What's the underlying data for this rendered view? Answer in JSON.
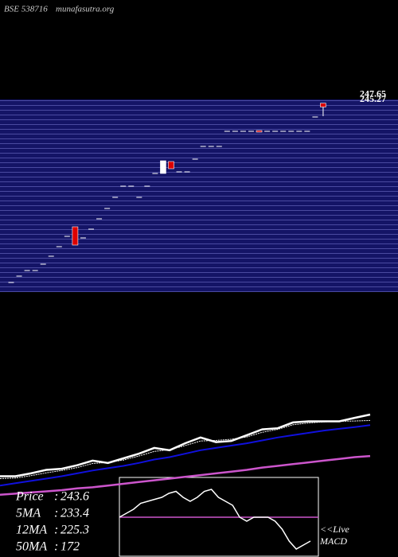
{
  "chart_data": [
    {
      "type": "candlestick",
      "exchange": "BSE 538716",
      "site": "munafasutra.org",
      "ylim": [
        130,
        250
      ],
      "price_labels": [
        247.65,
        245.27
      ],
      "open": [
        135,
        139,
        142.5,
        142.5,
        146.5,
        151.5,
        157.5,
        164,
        170,
        163,
        168.5,
        175,
        181.5,
        188.5,
        195.5,
        195.5,
        188.5,
        195.5,
        203.5,
        203.5,
        211,
        204.5,
        204.5,
        212.5,
        220.5,
        220.5,
        220.5,
        230,
        230,
        230,
        230,
        230.5,
        230,
        230,
        230,
        230,
        230,
        230,
        239,
        247.65
      ],
      "high": [
        135,
        139,
        142.5,
        142.5,
        146.5,
        151.5,
        157.5,
        164,
        170,
        163,
        168.5,
        175,
        181.5,
        188.5,
        195.5,
        195.5,
        188.5,
        195.5,
        203.5,
        211.5,
        211,
        204.5,
        204.5,
        212.5,
        220.5,
        220.5,
        220.5,
        230,
        230,
        230,
        230,
        230.5,
        230,
        230,
        230,
        230,
        230,
        230,
        239,
        247.65
      ],
      "low": [
        135,
        139,
        142.5,
        142.5,
        146.5,
        151.5,
        157.5,
        164,
        158.5,
        163,
        168.5,
        175,
        181.5,
        188.5,
        195.5,
        195.5,
        188.5,
        195.5,
        203.5,
        203.5,
        206.5,
        204.5,
        204.5,
        212.5,
        220.5,
        220.5,
        220.5,
        230,
        230,
        230,
        230,
        229.5,
        230,
        230,
        230,
        230,
        230,
        230,
        239,
        239.5
      ],
      "close": [
        135,
        139,
        142.5,
        142.5,
        146.5,
        151.5,
        157.5,
        164,
        158.5,
        163,
        168.5,
        175,
        181.5,
        188.5,
        195.5,
        195.5,
        188.5,
        195.5,
        203.5,
        211.5,
        206.5,
        204.5,
        204.5,
        212.5,
        220.5,
        220.5,
        220.5,
        230,
        230,
        230,
        230,
        229.5,
        230,
        230,
        230,
        230,
        230,
        230,
        239,
        245.27
      ],
      "up_color": "#ffffff",
      "down_color": "#dd0000"
    },
    {
      "type": "line",
      "ylim": [
        80,
        300
      ],
      "series": [
        {
          "name": "Price",
          "color": "#ffffff",
          "width": 2.5,
          "values": [
            137,
            137,
            142,
            148,
            150,
            156,
            164,
            160,
            168,
            176,
            186,
            182,
            194,
            204,
            196,
            198,
            208,
            218,
            220,
            230,
            232,
            232,
            232,
            238,
            243.6
          ]
        },
        {
          "name": "5MA",
          "color": "#ffffff",
          "width": 1,
          "values": [
            133,
            134,
            138,
            143,
            147,
            152,
            159,
            161,
            165,
            172,
            180,
            183,
            190,
            198,
            199,
            201,
            205,
            213,
            218,
            226,
            229,
            231,
            232,
            232.5,
            233.4
          ]
        },
        {
          "name": "12MA",
          "color": "#1010dd",
          "width": 2,
          "values": [
            121,
            125,
            129,
            133,
            137,
            142,
            147,
            151,
            155,
            160,
            166,
            170,
            176,
            182,
            186,
            190,
            194,
            199,
            204,
            208,
            212,
            216,
            219,
            222,
            225.3
          ]
        },
        {
          "name": "50MA",
          "color": "#cc55cc",
          "width": 2.5,
          "values": [
            105,
            107,
            109,
            111,
            113,
            116,
            118,
            121,
            124,
            127,
            130,
            133,
            136,
            139,
            142,
            145,
            148,
            152,
            155,
            158,
            161,
            164,
            167,
            170,
            172
          ]
        }
      ],
      "legend": [
        {
          "label": "Price",
          "value": 243.6
        },
        {
          "label": "5MA",
          "value": 233.4
        },
        {
          "label": "12MA",
          "value": 225.3
        },
        {
          "label": "50MA",
          "value": 172
        }
      ]
    },
    {
      "type": "macd",
      "title": "<<Live",
      "subtitle": "MACD",
      "ylim": [
        -10,
        10
      ],
      "zero_color": "#cc55cc",
      "color": "#ffffff",
      "values": [
        0,
        1,
        2,
        3.5,
        4,
        4.5,
        5,
        6,
        6.5,
        5,
        4,
        5,
        6.5,
        7,
        5,
        4,
        3,
        0,
        -1,
        0,
        0,
        0,
        -1,
        -3,
        -6,
        -8,
        -7,
        -6
      ]
    }
  ]
}
